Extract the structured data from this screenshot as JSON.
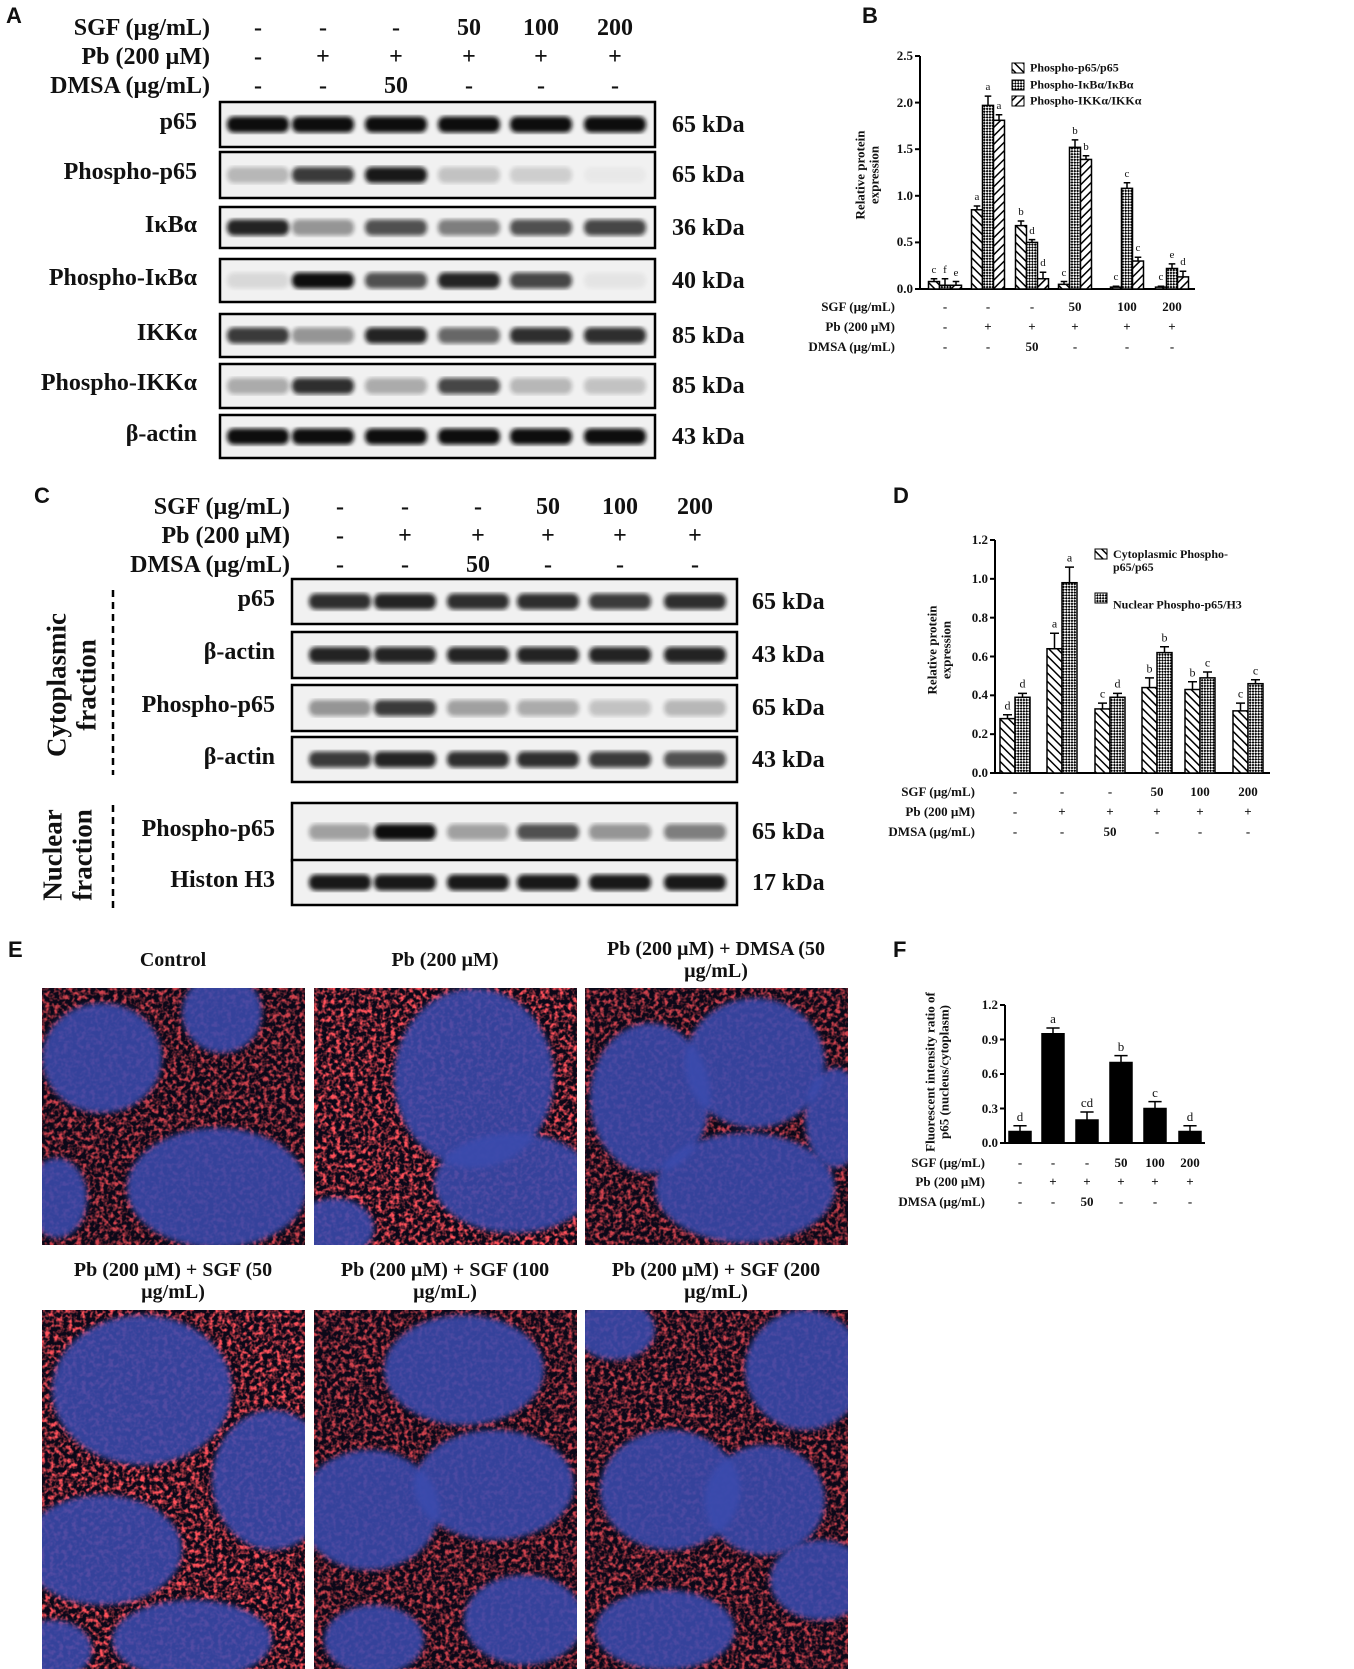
{
  "panel_labels": [
    "A",
    "B",
    "C",
    "D",
    "E",
    "F"
  ],
  "panel_a": {
    "treatments": [
      {
        "label": "SGF (µg/mL)",
        "values": [
          "-",
          "-",
          "-",
          "50",
          "100",
          "200"
        ]
      },
      {
        "label": "Pb (200 µM)",
        "values": [
          "-",
          "+",
          "+",
          "+",
          "+",
          "+"
        ]
      },
      {
        "label": "DMSA (µg/mL)",
        "values": [
          "-",
          "-",
          "50",
          "-",
          "-",
          "-"
        ]
      }
    ],
    "blots": [
      {
        "label": "p65",
        "size": "65 kDa"
      },
      {
        "label": "Phospho-p65",
        "size": "65 kDa"
      },
      {
        "label": "IκBα",
        "size": "36 kDa"
      },
      {
        "label": "Phospho-IκBα",
        "size": "40 kDa"
      },
      {
        "label": "IKKα",
        "size": "85 kDa"
      },
      {
        "label": "Phospho-IKKα",
        "size": "85 kDa"
      },
      {
        "label": "β-actin",
        "size": "43 kDa"
      }
    ]
  },
  "panel_c": {
    "treatments": [
      {
        "label": "SGF (µg/mL)",
        "values": [
          "-",
          "-",
          "-",
          "50",
          "100",
          "200"
        ]
      },
      {
        "label": "Pb (200 µM)",
        "values": [
          "-",
          "+",
          "+",
          "+",
          "+",
          "+"
        ]
      },
      {
        "label": "DMSA (µg/mL)",
        "values": [
          "-",
          "-",
          "50",
          "-",
          "-",
          "-"
        ]
      }
    ],
    "fractions": [
      "Cytoplasmic fraction",
      "Nuclear fraction"
    ],
    "blots": [
      {
        "label": "p65",
        "size": "65 kDa"
      },
      {
        "label": "β-actin",
        "size": "43 kDa"
      },
      {
        "label": "Phospho-p65",
        "size": "65 kDa"
      },
      {
        "label": "β-actin",
        "size": "43 kDa"
      },
      {
        "label": "Phospho-p65",
        "size": "65 kDa"
      },
      {
        "label": "Histon H3",
        "size": "17 kDa"
      }
    ]
  },
  "chart_data": [
    {
      "type": "bar",
      "ylabel": "Relative protein expression",
      "ylim": [
        0,
        2.5
      ],
      "yticks": [
        {
          "value": 0,
          "label": "0.0"
        },
        {
          "value": 0.5,
          "label": "0.5"
        },
        {
          "value": 1,
          "label": "1.0"
        },
        {
          "value": 1.5,
          "label": "1.5"
        },
        {
          "value": 2,
          "label": "2.0"
        },
        {
          "value": 2.5,
          "label": "2.5"
        }
      ],
      "treatments": [
        {
          "label": "SGF (µg/mL)",
          "values": [
            "-",
            "-",
            "-",
            "50",
            "100",
            "200"
          ]
        },
        {
          "label": "Pb (200 µM)",
          "values": [
            "-",
            "+",
            "+",
            "+",
            "+",
            "+"
          ]
        },
        {
          "label": "DMSA (µg/mL)",
          "values": [
            "-",
            "-",
            "50",
            "-",
            "-",
            "-"
          ]
        }
      ],
      "legend": "upper right",
      "series": [
        {
          "name": "Phospho-p65/p65",
          "color": "#000000",
          "pattern": "back-diagonal",
          "values": [
            0.08,
            0.85,
            0.68,
            0.05,
            0.02,
            0.02
          ],
          "errors": [
            0.03,
            0.04,
            0.05,
            0.03,
            0.01,
            0.01
          ],
          "letters": [
            "c",
            "a",
            "b",
            "c",
            "c",
            "c"
          ]
        },
        {
          "name": "Phospho-IκBα/IκBα",
          "color": "#000000",
          "pattern": "crosshatch",
          "values": [
            0.04,
            1.97,
            0.5,
            1.52,
            1.08,
            0.22
          ],
          "errors": [
            0.07,
            0.1,
            0.03,
            0.08,
            0.06,
            0.05
          ],
          "letters": [
            "f",
            "a",
            "d",
            "b",
            "c",
            "e"
          ]
        },
        {
          "name": "Phospho-IKKα/IKKα",
          "color": "#000000",
          "pattern": "diagonal",
          "values": [
            0.04,
            1.81,
            0.11,
            1.39,
            0.3,
            0.13
          ],
          "errors": [
            0.04,
            0.06,
            0.07,
            0.04,
            0.04,
            0.06
          ],
          "letters": [
            "e",
            "a",
            "d",
            "b",
            "c",
            "d"
          ]
        }
      ]
    },
    {
      "type": "bar",
      "ylabel": "Relative protein expression",
      "ylim": [
        0,
        1.2
      ],
      "yticks": [
        {
          "value": 0,
          "label": "0.0"
        },
        {
          "value": 0.2,
          "label": "0.2"
        },
        {
          "value": 0.4,
          "label": "0.4"
        },
        {
          "value": 0.6,
          "label": "0.6"
        },
        {
          "value": 0.8,
          "label": "0.8"
        },
        {
          "value": 1,
          "label": "1.0"
        },
        {
          "value": 1.2,
          "label": "1.2"
        }
      ],
      "treatments": [
        {
          "label": "SGF (µg/mL)",
          "values": [
            "-",
            "-",
            "-",
            "50",
            "100",
            "200"
          ]
        },
        {
          "label": "Pb (200 µM)",
          "values": [
            "-",
            "+",
            "+",
            "+",
            "+",
            "+"
          ]
        },
        {
          "label": "DMSA (µg/mL)",
          "values": [
            "-",
            "-",
            "50",
            "-",
            "-",
            "-"
          ]
        }
      ],
      "legend": "upper right",
      "series": [
        {
          "name": "Cytoplasmic Phospho-p65/p65",
          "color": "#000000",
          "pattern": "back-diagonal",
          "values": [
            0.28,
            0.64,
            0.33,
            0.44,
            0.43,
            0.32
          ],
          "errors": [
            0.02,
            0.08,
            0.03,
            0.05,
            0.04,
            0.04
          ],
          "letters": [
            "d",
            "a",
            "c",
            "b",
            "b",
            "c"
          ]
        },
        {
          "name": "Nuclear Phospho-p65/H3",
          "color": "#000000",
          "pattern": "crosshatch",
          "values": [
            0.39,
            0.98,
            0.39,
            0.62,
            0.49,
            0.46
          ],
          "errors": [
            0.02,
            0.08,
            0.02,
            0.03,
            0.03,
            0.02
          ],
          "letters": [
            "d",
            "a",
            "d",
            "b",
            "c",
            "c"
          ]
        }
      ]
    },
    {
      "type": "bar",
      "ylabel": "Fluorescent intensity ratio of p65 (nucleus/cytoplasm)",
      "ylim": [
        0,
        1.2
      ],
      "yticks": [
        {
          "value": 0,
          "label": "0.0"
        },
        {
          "value": 0.3,
          "label": "0.3"
        },
        {
          "value": 0.6,
          "label": "0.6"
        },
        {
          "value": 0.9,
          "label": "0.9"
        },
        {
          "value": 1.2,
          "label": "1.2"
        }
      ],
      "treatments": [
        {
          "label": "SGF (µg/mL)",
          "values": [
            "-",
            "-",
            "-",
            "50",
            "100",
            "200"
          ]
        },
        {
          "label": "Pb (200 µM)",
          "values": [
            "-",
            "+",
            "+",
            "+",
            "+",
            "+"
          ]
        },
        {
          "label": "DMSA (µg/mL)",
          "values": [
            "-",
            "-",
            "50",
            "-",
            "-",
            "-"
          ]
        }
      ],
      "series": [
        {
          "color": "#000000",
          "pattern": "solid",
          "values": [
            0.1,
            0.95,
            0.2,
            0.7,
            0.3,
            0.1
          ],
          "errors": [
            0.05,
            0.05,
            0.07,
            0.06,
            0.06,
            0.05
          ],
          "letters": [
            "d",
            "a",
            "cd",
            "b",
            "c",
            "d"
          ]
        }
      ]
    }
  ],
  "panel_e": {
    "titles": [
      "Control",
      "Pb (200 µM)",
      "Pb (200 µM) + DMSA (50 µg/mL)",
      "Pb (200 µM) + SGF (50 µg/mL)",
      "Pb (200 µM) + SGF (100 µg/mL)",
      "Pb (200 µM) + SGF (200 µg/mL)"
    ]
  }
}
